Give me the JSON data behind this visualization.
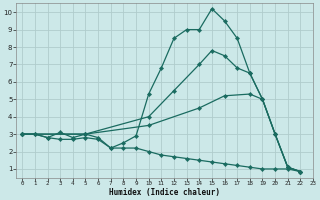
{
  "title": "",
  "xlabel": "Humidex (Indice chaleur)",
  "bg_color": "#cce8e8",
  "grid_color": "#b0cccc",
  "line_color": "#1a6b60",
  "xlim": [
    -0.5,
    23
  ],
  "ylim": [
    0.5,
    10.5
  ],
  "xtick_labels": [
    "0",
    "1",
    "2",
    "3",
    "4",
    "5",
    "6",
    "7",
    "8",
    "9",
    "1011121314151617181920212223"
  ],
  "xticks": [
    0,
    1,
    2,
    3,
    4,
    5,
    6,
    7,
    8,
    9,
    10,
    11,
    12,
    13,
    14,
    15,
    16,
    17,
    18,
    19,
    20,
    21,
    22,
    23
  ],
  "yticks": [
    1,
    2,
    3,
    4,
    5,
    6,
    7,
    8,
    9,
    10
  ],
  "curve_max_x": [
    0,
    1,
    2,
    3,
    4,
    5,
    6,
    7,
    8,
    9,
    10,
    11,
    12,
    13,
    14,
    15,
    16,
    17,
    18,
    19,
    20,
    21,
    22
  ],
  "curve_max_y": [
    3,
    3,
    2.8,
    3.1,
    2.8,
    3.0,
    2.8,
    2.2,
    2.5,
    2.9,
    5.3,
    6.8,
    8.5,
    9.0,
    9.0,
    10.2,
    9.5,
    8.5,
    6.5,
    5.0,
    3.0,
    1.1,
    0.85
  ],
  "curve_mean_x": [
    0,
    5,
    10,
    14,
    16,
    18,
    19,
    20,
    21,
    22
  ],
  "curve_mean_y": [
    3.0,
    3.0,
    3.5,
    4.5,
    5.2,
    5.3,
    5.0,
    3.0,
    1.1,
    0.85
  ],
  "curve_q75_x": [
    0,
    5,
    10,
    12,
    14,
    15,
    16,
    17,
    18,
    19,
    20,
    21,
    22
  ],
  "curve_q75_y": [
    3.0,
    3.0,
    4.0,
    5.5,
    7.0,
    7.8,
    7.5,
    6.8,
    6.5,
    5.0,
    3.0,
    1.1,
    0.85
  ],
  "curve_min_x": [
    0,
    1,
    2,
    3,
    4,
    5,
    6,
    7,
    8,
    9,
    10,
    11,
    12,
    13,
    14,
    15,
    16,
    17,
    18,
    19,
    20,
    21,
    22
  ],
  "curve_min_y": [
    3,
    3,
    2.8,
    2.7,
    2.7,
    2.8,
    2.7,
    2.2,
    2.2,
    2.2,
    2.0,
    1.8,
    1.7,
    1.6,
    1.5,
    1.4,
    1.3,
    1.2,
    1.1,
    1.0,
    1.0,
    1.0,
    0.85
  ]
}
